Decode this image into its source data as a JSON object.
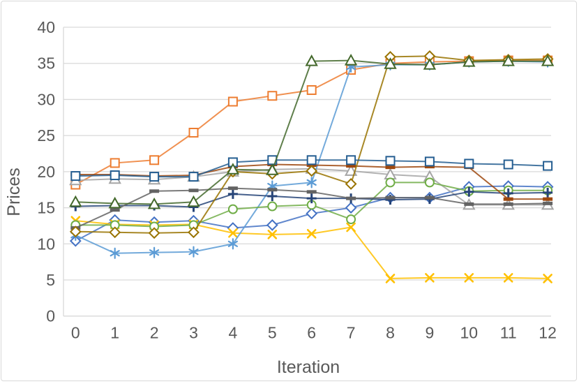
{
  "chart_data": {
    "type": "line",
    "title": "",
    "xlabel": "Iteration",
    "ylabel": "Prices",
    "x": [
      0,
      1,
      2,
      3,
      4,
      5,
      6,
      7,
      8,
      9,
      10,
      11,
      12
    ],
    "xlim": [
      0,
      12
    ],
    "ylim": [
      0,
      40
    ],
    "ytick_step": 5,
    "yticks": [
      0,
      5,
      10,
      15,
      20,
      25,
      30,
      35,
      40
    ],
    "grid": true,
    "legend": "none",
    "axis_text_color": "#595959",
    "gridline_color": "#d9d9d9",
    "frame_border_color": "#d9d9d9",
    "series": [
      {
        "name": "blue-diamond",
        "marker": "diamond",
        "color": "#4472C4",
        "values": [
          10.4,
          13.3,
          13.0,
          13.2,
          12.2,
          12.6,
          14.2,
          15.0,
          16.4,
          16.4,
          17.9,
          18.0,
          17.9
        ]
      },
      {
        "name": "orange-square",
        "marker": "square",
        "color": "#ED7D31",
        "values": [
          18.2,
          21.2,
          21.6,
          25.4,
          29.7,
          30.5,
          31.3,
          34.1,
          35.0,
          35.2,
          35.3,
          35.4,
          35.4
        ]
      },
      {
        "name": "gray-triangle",
        "marker": "triangle",
        "color": "#A5A5A5",
        "values": [
          18.8,
          19.0,
          18.9,
          19.3,
          20.0,
          20.3,
          20.4,
          20.1,
          19.6,
          19.3,
          15.4,
          15.4,
          15.4
        ]
      },
      {
        "name": "gold-x",
        "marker": "x",
        "color": "#FFC000",
        "values": [
          13.2,
          12.7,
          12.6,
          12.7,
          11.5,
          11.3,
          11.4,
          12.3,
          5.2,
          5.3,
          5.3,
          5.3,
          5.2
        ]
      },
      {
        "name": "lightblue-asterisk",
        "marker": "asterisk",
        "color": "#5B9BD5",
        "values": [
          11.2,
          8.7,
          8.8,
          8.9,
          10.0,
          18.0,
          18.5,
          34.5,
          34.8,
          34.8,
          35.2,
          35.3,
          35.2
        ]
      },
      {
        "name": "green-circle",
        "marker": "circle",
        "color": "#70AD47",
        "values": [
          12.6,
          12.6,
          12.4,
          12.6,
          14.8,
          15.2,
          15.4,
          13.4,
          18.5,
          18.5,
          17.3,
          17.4,
          17.4
        ]
      },
      {
        "name": "navy-plus",
        "marker": "plus",
        "color": "#264478",
        "values": [
          15.2,
          15.3,
          15.3,
          15.1,
          16.9,
          16.6,
          16.3,
          16.3,
          16.1,
          16.2,
          17.2,
          17.0,
          17.1
        ]
      },
      {
        "name": "brown-dash",
        "marker": "dash",
        "color": "#9E480E",
        "values": [
          19.6,
          19.6,
          19.4,
          19.5,
          20.7,
          21.0,
          20.9,
          20.8,
          20.6,
          20.7,
          20.6,
          16.2,
          16.2
        ]
      },
      {
        "name": "darkgray-dash",
        "marker": "dash",
        "color": "#636363",
        "values": [
          12.2,
          14.7,
          17.3,
          17.4,
          17.7,
          17.5,
          17.2,
          16.3,
          16.4,
          16.4,
          15.5,
          15.5,
          15.6
        ]
      },
      {
        "name": "olive-diamond",
        "marker": "diamond",
        "color": "#997300",
        "values": [
          11.7,
          11.6,
          11.5,
          11.6,
          20.0,
          19.7,
          20.1,
          18.3,
          35.9,
          36.0,
          35.4,
          35.5,
          35.6
        ]
      },
      {
        "name": "blue-square",
        "marker": "square",
        "color": "#255E91",
        "values": [
          19.4,
          19.5,
          19.3,
          19.3,
          21.3,
          21.6,
          21.6,
          21.6,
          21.5,
          21.4,
          21.1,
          21.0,
          20.8
        ]
      },
      {
        "name": "darkgreen-triangle",
        "marker": "triangle",
        "color": "#43682B",
        "values": [
          15.8,
          15.6,
          15.5,
          15.8,
          20.3,
          20.2,
          35.3,
          35.4,
          34.9,
          34.8,
          35.2,
          35.3,
          35.3
        ]
      }
    ]
  }
}
